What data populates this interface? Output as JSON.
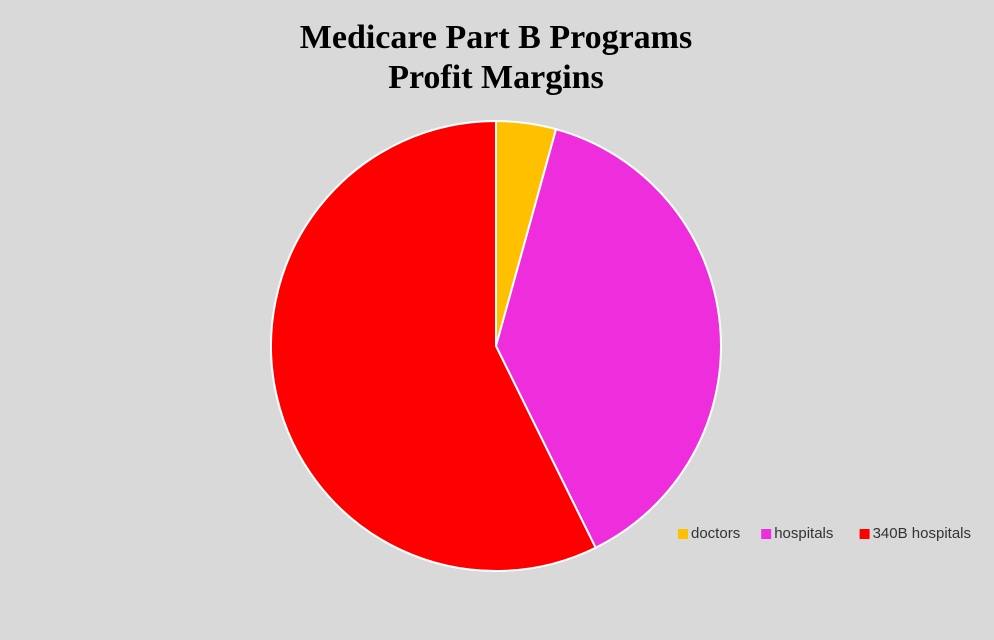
{
  "chart_data": {
    "type": "pie",
    "title": [
      "Medicare Part B Programs",
      "Profit Margins"
    ],
    "categories": [
      "doctors",
      "hospitals",
      "340B hospitals"
    ],
    "values": [
      4.3,
      38.4,
      57.3
    ],
    "colors": [
      "#ffc000",
      "#ee2ddd",
      "#ff0000"
    ],
    "legend": "bottom-right"
  }
}
